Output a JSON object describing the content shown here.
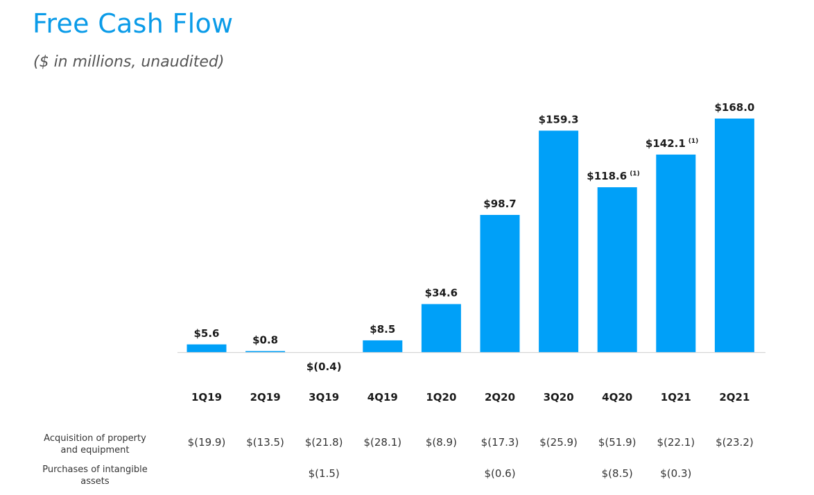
{
  "header": {
    "title": "Free Cash Flow",
    "subtitle": "($ in millions,  unaudited)"
  },
  "colors": {
    "bar": "#00a0f8",
    "title": "#0a9be8",
    "baseline": "#d6d6d6"
  },
  "chart_data": {
    "type": "bar",
    "title": "Free Cash Flow",
    "subtitle": "($ in millions,  unaudited)",
    "categories": [
      "1Q19",
      "2Q19",
      "3Q19",
      "4Q19",
      "1Q20",
      "2Q20",
      "3Q20",
      "4Q20",
      "1Q21",
      "2Q21"
    ],
    "values": [
      5.6,
      0.8,
      -0.4,
      8.5,
      34.6,
      98.7,
      159.3,
      118.6,
      142.1,
      168.0
    ],
    "value_labels": [
      "$5.6",
      "$0.8",
      "$(0.4)",
      "$8.5",
      "$34.6",
      "$98.7",
      "$159.3",
      "$118.6",
      "$142.1",
      "$168.0"
    ],
    "value_notes": [
      "",
      "",
      "",
      "",
      "",
      "",
      "",
      "(1)",
      "(1)",
      ""
    ],
    "ylim": [
      -0.4,
      168.0
    ],
    "grid": false,
    "legend": "none",
    "rows": [
      {
        "label_lines": [
          "Acquisition of property",
          "and equipment"
        ],
        "values": [
          "$(19.9)",
          "$(13.5)",
          "$(21.8)",
          "$(28.1)",
          "$(8.9)",
          "$(17.3)",
          "$(25.9)",
          "$(51.9)",
          "$(22.1)",
          "$(23.2)"
        ]
      },
      {
        "label_lines": [
          "Purchases of intangible",
          "assets"
        ],
        "values": [
          "",
          "",
          "$(1.5)",
          "",
          "",
          "$(0.6)",
          "",
          "$(8.5)",
          "$(0.3)",
          ""
        ]
      }
    ]
  }
}
